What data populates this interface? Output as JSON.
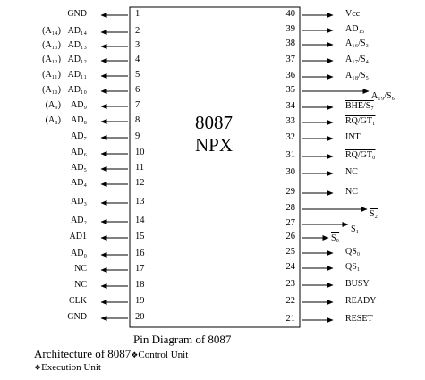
{
  "chip": {
    "line1": "8087",
    "line2": "NPX"
  },
  "left_pins": [
    {
      "num": "1",
      "label": "GND",
      "alt": ""
    },
    {
      "num": "2",
      "label": "AD₁₄",
      "alt": "(A₁₄)"
    },
    {
      "num": "3",
      "label": "AD₁₃",
      "alt": "(A₁₃)"
    },
    {
      "num": "4",
      "label": "AD₁₂",
      "alt": "(A₁₂)"
    },
    {
      "num": "5",
      "label": "AD₁₁",
      "alt": "(A₁₁)"
    },
    {
      "num": "6",
      "label": "AD₁₀",
      "alt": "(A₁₀)"
    },
    {
      "num": "7",
      "label": "AD₉",
      "alt": "(A₉)"
    },
    {
      "num": "8",
      "label": "AD₈",
      "alt": "(A₈)"
    },
    {
      "num": "9",
      "label": "AD₇",
      "alt": ""
    },
    {
      "num": "10",
      "label": "AD₆",
      "alt": ""
    },
    {
      "num": "11",
      "label": "AD₅",
      "alt": ""
    },
    {
      "num": "12",
      "label": "AD₄",
      "alt": ""
    },
    {
      "num": "13",
      "label": "AD₃",
      "alt": ""
    },
    {
      "num": "14",
      "label": "AD₂",
      "alt": ""
    },
    {
      "num": "15",
      "label": "AD1",
      "alt": ""
    },
    {
      "num": "16",
      "label": "AD₀",
      "alt": ""
    },
    {
      "num": "17",
      "label": "NC",
      "alt": ""
    },
    {
      "num": "18",
      "label": "NC",
      "alt": ""
    },
    {
      "num": "19",
      "label": "CLK",
      "alt": ""
    },
    {
      "num": "20",
      "label": "GND",
      "alt": ""
    }
  ],
  "right_pins": [
    {
      "num": "40",
      "label": "Vcc"
    },
    {
      "num": "39",
      "label": "AD₁₅"
    },
    {
      "num": "38",
      "label": "A₁₆/S₃"
    },
    {
      "num": "37",
      "label": "A₁₇/S₄"
    },
    {
      "num": "36",
      "label": "A₁₈/S₅"
    },
    {
      "num": "35",
      "label": "A₁₉/S₆"
    },
    {
      "num": "34",
      "label": "BHE/S₇"
    },
    {
      "num": "33",
      "label": "RQ/GT₁"
    },
    {
      "num": "32",
      "label": "INT"
    },
    {
      "num": "31",
      "label": "RQ/GT₀"
    },
    {
      "num": "30",
      "label": "NC"
    },
    {
      "num": "29",
      "label": "NC"
    },
    {
      "num": "28",
      "label": "S₂"
    },
    {
      "num": "27",
      "label": "S₁"
    },
    {
      "num": "26",
      "label": "S₀"
    },
    {
      "num": "25",
      "label": "QS₀"
    },
    {
      "num": "24",
      "label": "QS₁"
    },
    {
      "num": "23",
      "label": "BUSY"
    },
    {
      "num": "22",
      "label": "READY"
    },
    {
      "num": "21",
      "label": "RESET"
    }
  ],
  "caption": "Pin Diagram of 8087",
  "footer": {
    "line1": "Architecture of 8087",
    "bullet": "❖",
    "control_unit": "Control Unit",
    "execution_unit": "Execution Unit"
  }
}
